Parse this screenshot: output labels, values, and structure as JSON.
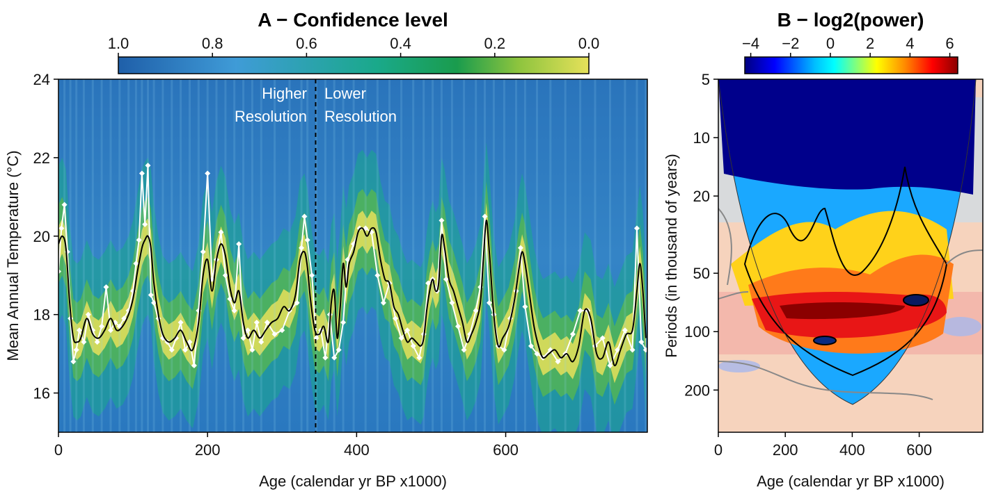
{
  "chart_data": [
    {
      "type": "line",
      "panel": "A",
      "title": "A − Confidence level",
      "xlabel": "Age (calendar yr BP x1000)",
      "ylabel": "Mean Annual Temperature (°C)",
      "xlim": [
        0,
        790
      ],
      "ylim": [
        15,
        24
      ],
      "x_ticks": [
        "0",
        "200",
        "400",
        "600"
      ],
      "y_ticks": [
        "16",
        "18",
        "20",
        "22",
        "24"
      ],
      "colorbar": {
        "label": "Confidence level",
        "ticks": [
          "1.0",
          "0.8",
          "0.6",
          "0.4",
          "0.2",
          "0.0"
        ],
        "colors": [
          "#1f5fa9",
          "#3f9bd7",
          "#1aa98a",
          "#1a9c4d",
          "#8dc43e",
          "#e6e15a"
        ]
      },
      "divider_x": 345,
      "annotations": [
        "Higher",
        "Resolution",
        "Lower",
        "Resolution"
      ],
      "series": [
        {
          "role": "reconstruction",
          "color": "#ffffff",
          "x": [
            0,
            4,
            8,
            12,
            16,
            20,
            24,
            28,
            34,
            40,
            46,
            52,
            58,
            64,
            70,
            76,
            82,
            88,
            94,
            100,
            104,
            108,
            112,
            116,
            120,
            124,
            128,
            134,
            140,
            146,
            152,
            158,
            164,
            170,
            176,
            182,
            188,
            194,
            200,
            206,
            212,
            218,
            224,
            230,
            236,
            242,
            248,
            254,
            260,
            266,
            272,
            280,
            290,
            300,
            310,
            320,
            326,
            330,
            334,
            340,
            346,
            352,
            358,
            364,
            370,
            376,
            382,
            388,
            396,
            404,
            412,
            420,
            428,
            436,
            444,
            452,
            460,
            468,
            476,
            484,
            490,
            496,
            502,
            508,
            514,
            520,
            528,
            536,
            544,
            552,
            560,
            566,
            572,
            578,
            584,
            590,
            598,
            606,
            614,
            620,
            626,
            634,
            642,
            650,
            660,
            670,
            680,
            690,
            700,
            710,
            720,
            730,
            740,
            750,
            760,
            770,
            776,
            782,
            788
          ],
          "y": [
            19.1,
            20.2,
            20.8,
            19.6,
            17.9,
            16.8,
            17.1,
            17.6,
            17.3,
            18.0,
            17.6,
            17.3,
            17.7,
            18.7,
            17.6,
            17.8,
            17.7,
            17.9,
            18.1,
            18.6,
            19.3,
            19.9,
            21.6,
            20.3,
            21.8,
            18.5,
            18.3,
            17.9,
            17.4,
            17.3,
            17.1,
            17.4,
            17.8,
            17.1,
            17.3,
            16.7,
            18.1,
            19.6,
            21.6,
            18.9,
            19.4,
            20.1,
            19.0,
            18.4,
            18.1,
            19.8,
            17.4,
            17.6,
            17.1,
            17.8,
            17.3,
            17.8,
            17.5,
            17.6,
            18.1,
            18.3,
            19.7,
            20.5,
            19.9,
            19.0,
            17.4,
            17.6,
            16.9,
            18.0,
            16.9,
            17.1,
            17.8,
            19.4,
            19.8,
            20.2,
            20.2,
            20.1,
            19.0,
            18.3,
            18.8,
            17.9,
            17.4,
            17.6,
            17.2,
            16.9,
            17.5,
            18.8,
            18.9,
            18.6,
            20.4,
            18.9,
            18.3,
            17.7,
            17.1,
            17.5,
            18.1,
            18.7,
            20.5,
            18.3,
            18.0,
            17.2,
            17.1,
            17.9,
            18.6,
            19.7,
            18.2,
            17.2,
            17.0,
            16.9,
            17.1,
            16.8,
            17.0,
            17.5,
            18.1,
            18.1,
            17.2,
            17.4,
            16.7,
            17.1,
            17.6,
            17.1,
            20.2,
            17.3,
            17.1
          ]
        },
        {
          "role": "smoothed",
          "color": "#000000",
          "x": [
            0,
            5,
            10,
            15,
            20,
            25,
            30,
            38,
            46,
            54,
            62,
            70,
            78,
            86,
            94,
            100,
            106,
            112,
            116,
            120,
            124,
            128,
            134,
            140,
            148,
            156,
            164,
            172,
            180,
            188,
            194,
            200,
            206,
            212,
            218,
            224,
            230,
            236,
            242,
            248,
            254,
            262,
            270,
            278,
            286,
            294,
            302,
            310,
            318,
            324,
            330,
            334,
            338,
            344,
            350,
            356,
            362,
            366,
            370,
            374,
            378,
            382,
            386,
            390,
            396,
            402,
            408,
            414,
            420,
            426,
            432,
            438,
            444,
            450,
            456,
            462,
            468,
            474,
            480,
            486,
            490,
            494,
            498,
            502,
            506,
            510,
            514,
            518,
            524,
            530,
            536,
            542,
            548,
            554,
            560,
            566,
            570,
            574,
            578,
            584,
            590,
            596,
            604,
            612,
            618,
            622,
            626,
            632,
            638,
            644,
            650,
            658,
            666,
            674,
            682,
            690,
            698,
            706,
            714,
            722,
            730,
            738,
            746,
            754,
            762,
            770,
            776,
            780,
            784,
            788
          ],
          "y": [
            19.8,
            20.0,
            19.7,
            18.3,
            17.4,
            17.3,
            17.4,
            17.9,
            17.5,
            17.4,
            17.6,
            17.9,
            17.6,
            17.7,
            18.0,
            18.4,
            19.1,
            19.7,
            19.9,
            20.0,
            19.7,
            18.8,
            18.0,
            17.5,
            17.3,
            17.4,
            17.6,
            17.3,
            17.1,
            17.8,
            19.0,
            19.4,
            18.6,
            19.4,
            19.8,
            19.5,
            18.7,
            18.3,
            18.6,
            17.8,
            17.4,
            17.6,
            17.4,
            17.6,
            17.8,
            17.9,
            18.2,
            18.1,
            18.5,
            19.4,
            19.6,
            19.2,
            18.4,
            17.6,
            17.5,
            17.7,
            17.3,
            18.3,
            18.6,
            17.4,
            18.2,
            19.3,
            18.7,
            19.3,
            19.6,
            20.1,
            20.2,
            20.0,
            20.2,
            20.1,
            19.4,
            18.9,
            18.8,
            18.2,
            18.0,
            17.6,
            17.3,
            17.4,
            17.3,
            17.2,
            17.4,
            18.1,
            18.6,
            18.9,
            18.6,
            18.8,
            20.0,
            19.7,
            18.9,
            18.6,
            18.2,
            17.8,
            17.3,
            17.5,
            17.8,
            18.3,
            19.4,
            20.4,
            19.6,
            18.0,
            17.2,
            17.4,
            17.7,
            18.4,
            19.2,
            19.6,
            19.3,
            18.5,
            17.7,
            17.2,
            16.9,
            17.0,
            17.1,
            16.9,
            17.0,
            16.8,
            17.2,
            18.1,
            17.9,
            17.0,
            16.9,
            17.3,
            16.7,
            17.1,
            17.5,
            17.6,
            18.6,
            19.3,
            18.6,
            17.4
          ]
        }
      ]
    },
    {
      "type": "heatmap",
      "panel": "B",
      "title": "B − log2(power)",
      "xlabel": "Age (calendar yr BP x1000)",
      "ylabel": "Periods (in thousand of years)",
      "xlim": [
        0,
        790
      ],
      "x_ticks": [
        "0",
        "200",
        "400",
        "600"
      ],
      "y_ticks": [
        "5",
        "10",
        "20",
        "50",
        "100",
        "200"
      ],
      "y_scale": "log",
      "ylim": [
        5,
        330
      ],
      "colorbar": {
        "label": "log2(power)",
        "ticks": [
          "−4",
          "−2",
          "0",
          "2",
          "4",
          "6"
        ],
        "range": [
          -4.3,
          6.4
        ],
        "colors": [
          "#000080",
          "#0000ff",
          "#00bfff",
          "#00ffff",
          "#7fff7f",
          "#ffff00",
          "#ff8c00",
          "#ff0000",
          "#8b0000"
        ]
      },
      "features": [
        {
          "kind": "high-power band",
          "x_range": [
            70,
            710
          ],
          "period_center": 100
        },
        {
          "kind": "significant region",
          "x": 580,
          "period": 80
        },
        {
          "kind": "significant region",
          "x": 310,
          "period": 130
        },
        {
          "kind": "significant region",
          "x": 560,
          "period": 60
        }
      ]
    }
  ]
}
